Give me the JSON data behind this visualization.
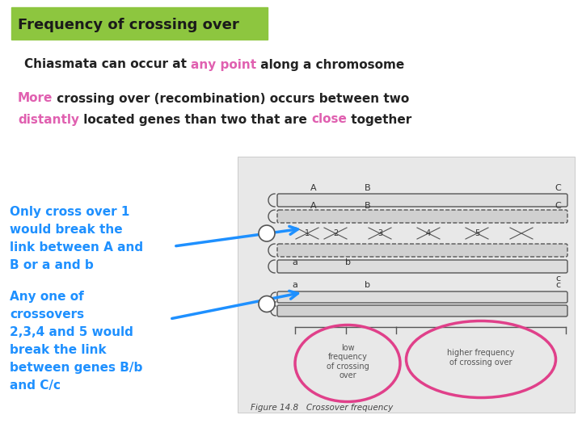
{
  "title_text": "Frequency of crossing over",
  "title_bg": "#8dc63f",
  "title_text_color": "#1a1a1a",
  "line2_parts": [
    {
      "text": "Chiasmata can occur at ",
      "color": "#222222"
    },
    {
      "text": "any point",
      "color": "#e060b0"
    },
    {
      "text": " along a chromosome",
      "color": "#222222"
    }
  ],
  "line3_parts": [
    {
      "text": "More",
      "color": "#e060b0"
    },
    {
      "text": " crossing over (recombination) occurs between two",
      "color": "#222222"
    }
  ],
  "line4_parts": [
    {
      "text": "distantly",
      "color": "#e060b0"
    },
    {
      "text": " located genes than two that are ",
      "color": "#222222"
    },
    {
      "text": "close",
      "color": "#e060b0"
    },
    {
      "text": " together",
      "color": "#222222"
    }
  ],
  "left_text1_lines": [
    "Only cross over 1",
    "would break the",
    "link between A and",
    "B or a and b"
  ],
  "left_text1_color": "#1e90ff",
  "left_text2_lines": [
    "Any one of",
    "crossovers",
    "2,3,4 and 5 would",
    "break the link",
    "between genes B/b",
    "and C/c"
  ],
  "left_text2_color": "#1e90ff",
  "bg_color": "#ffffff",
  "diag_bg": "#e8e8e8",
  "chrom_color1": "#d8d8d8",
  "chrom_color2": "#c8c8c8",
  "chrom_edge": "#444444",
  "pink_circle": "#e0408a",
  "blue_arrow": "#1e90ff",
  "gray_text": "#555555"
}
